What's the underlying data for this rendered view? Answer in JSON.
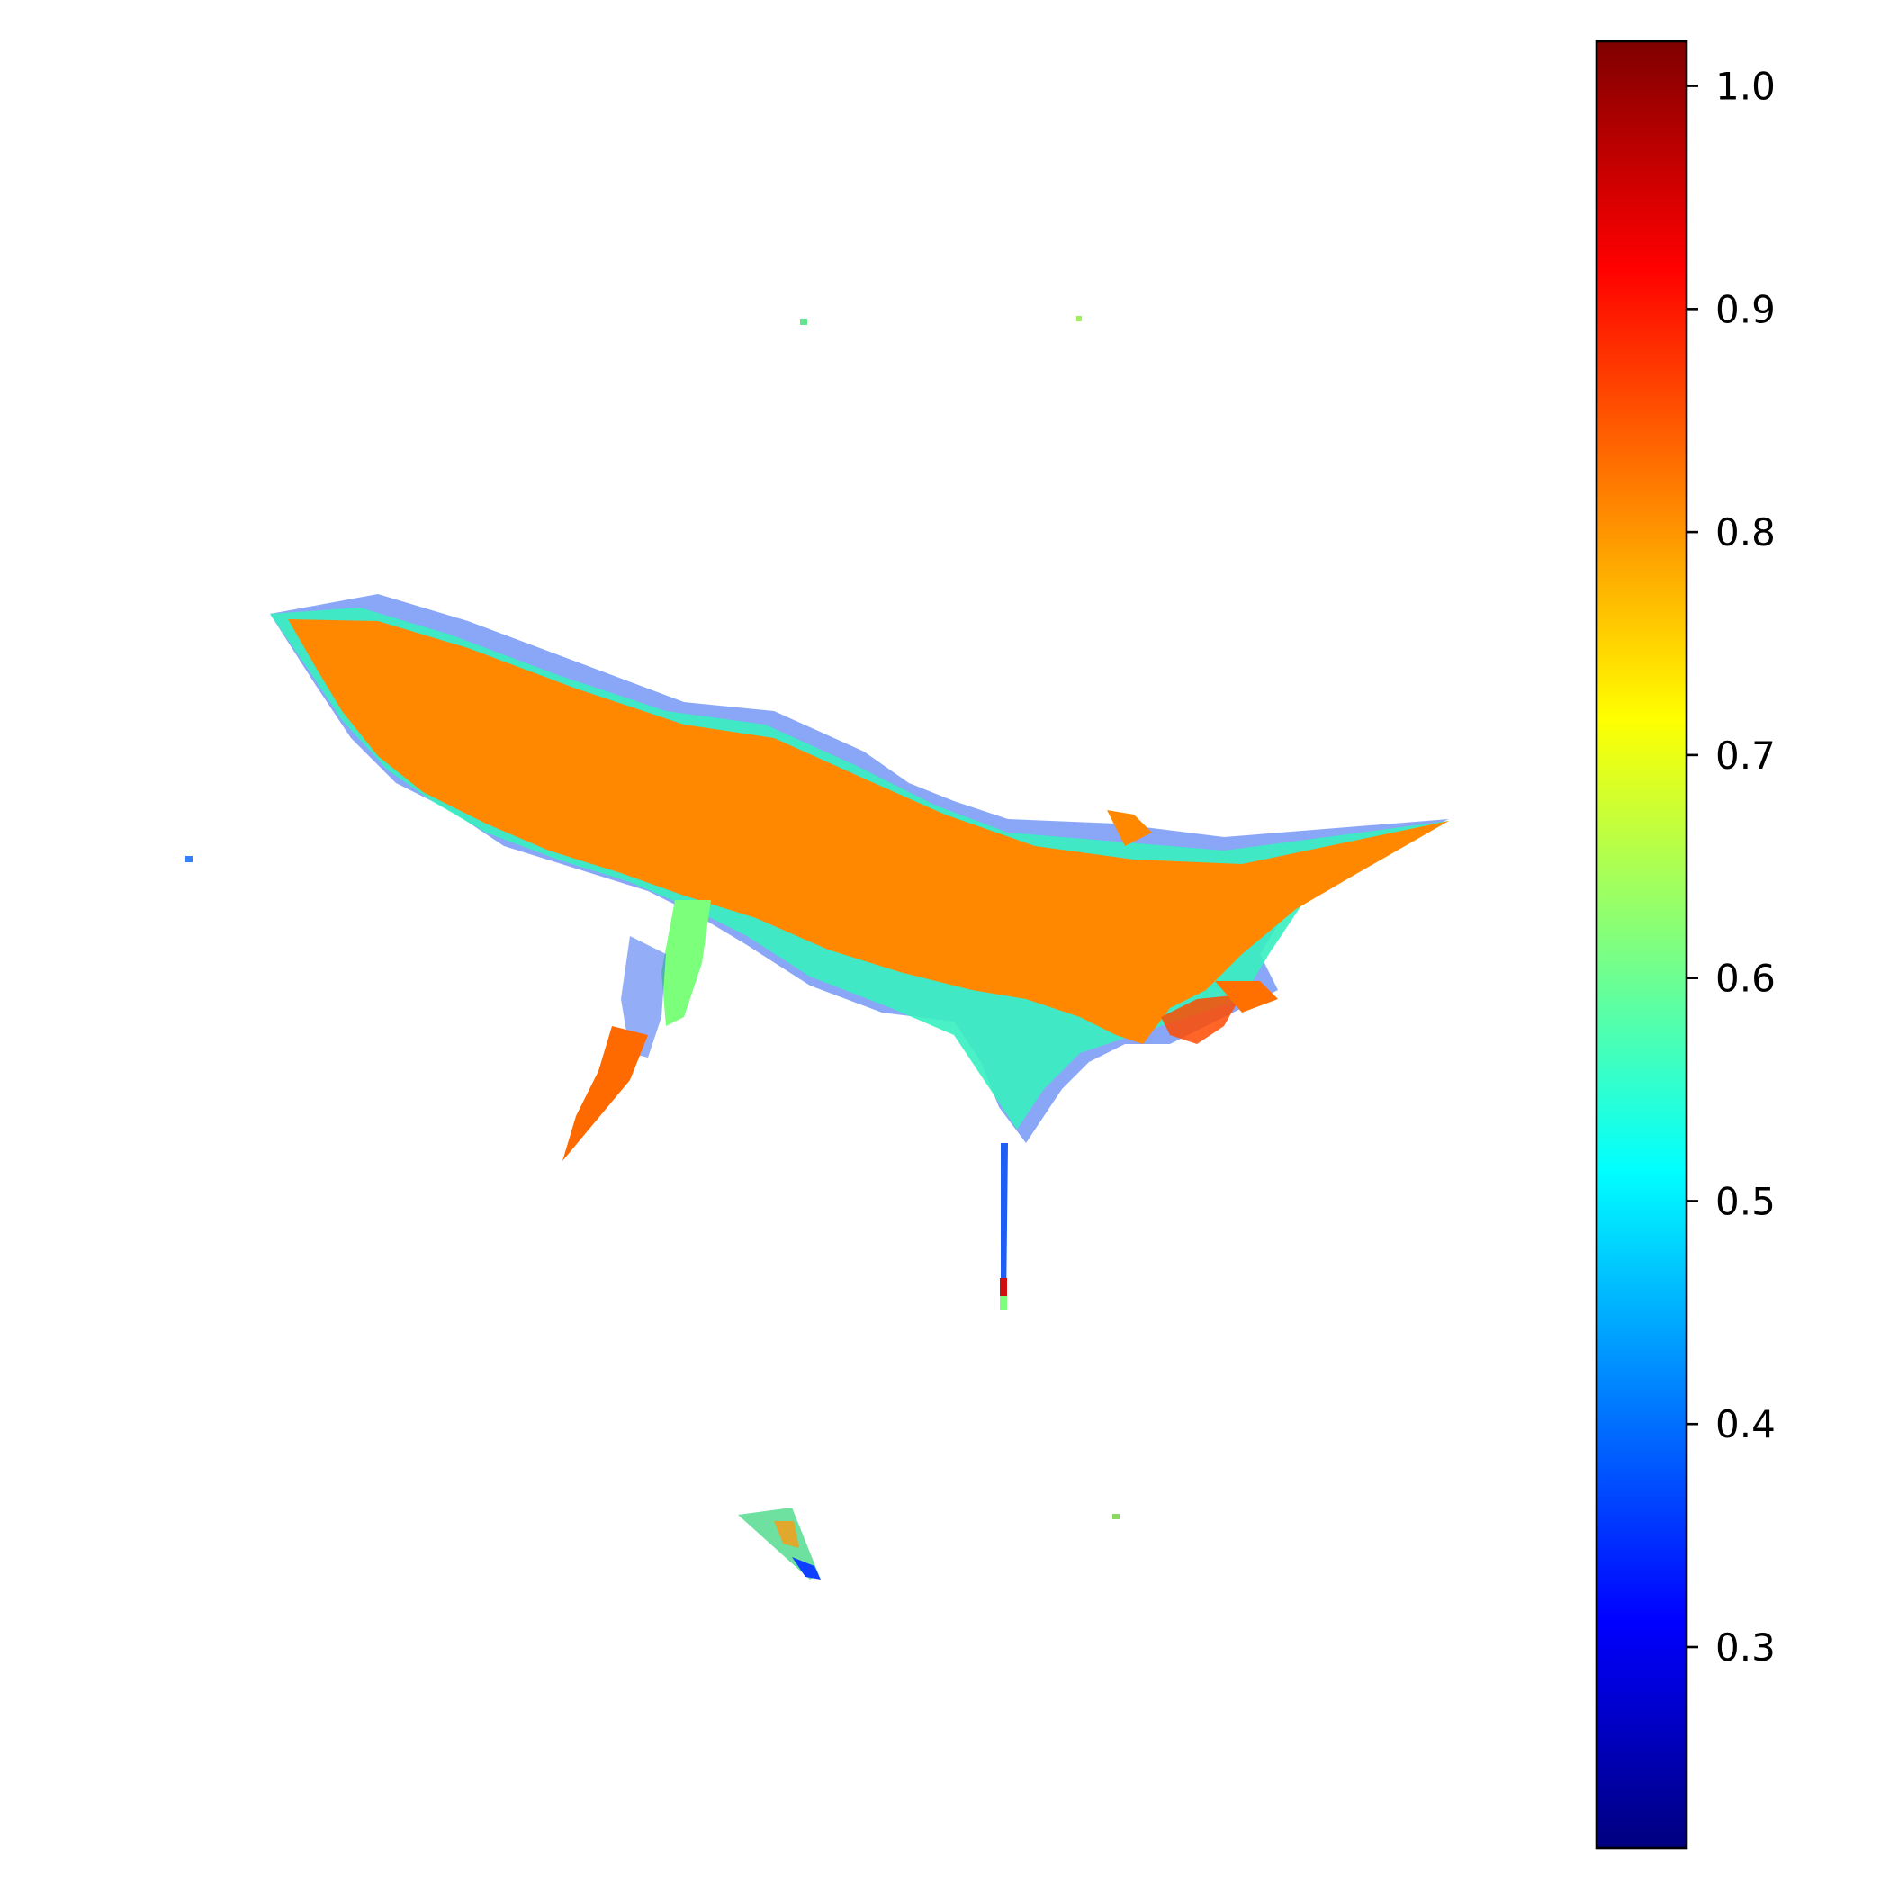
{
  "chart_data": {
    "type": "scatter",
    "title": "",
    "xlabel": "",
    "ylabel": "",
    "axes_visible": false,
    "grid": false,
    "marker": "x",
    "colormap": "jet",
    "dominant_point_color": "#ff8800",
    "colorbar": {
      "location": "right",
      "range": [
        0.21,
        1.02
      ],
      "ticks": [
        0.3,
        0.4,
        0.5,
        0.6,
        0.7,
        0.8,
        0.9,
        1.0
      ],
      "tick_labels": [
        "0.3",
        "0.4",
        "0.5",
        "0.6",
        "0.7",
        "0.8",
        "0.9",
        "1.0"
      ],
      "colors": [
        "#00007f",
        "#0000ff",
        "#007fff",
        "#00ffff",
        "#7fff7f",
        "#ffff00",
        "#ff7f00",
        "#ff0000",
        "#7f0000"
      ]
    },
    "clusters": [
      {
        "name": "main-body",
        "value_range": [
          0.3,
          1.0
        ],
        "typical_value": 0.83
      },
      {
        "name": "left-leg",
        "value_range": [
          0.35,
          0.9
        ],
        "typical_value": 0.85
      },
      {
        "name": "bottom-stem",
        "value_range": [
          0.35,
          1.0
        ],
        "typical_value": 0.45
      },
      {
        "name": "small-triangle",
        "value_range": [
          0.35,
          0.7
        ],
        "typical_value": 0.6
      },
      {
        "name": "isolated-points",
        "value_range": [
          0.4,
          0.65
        ],
        "typical_value": 0.62
      }
    ]
  }
}
